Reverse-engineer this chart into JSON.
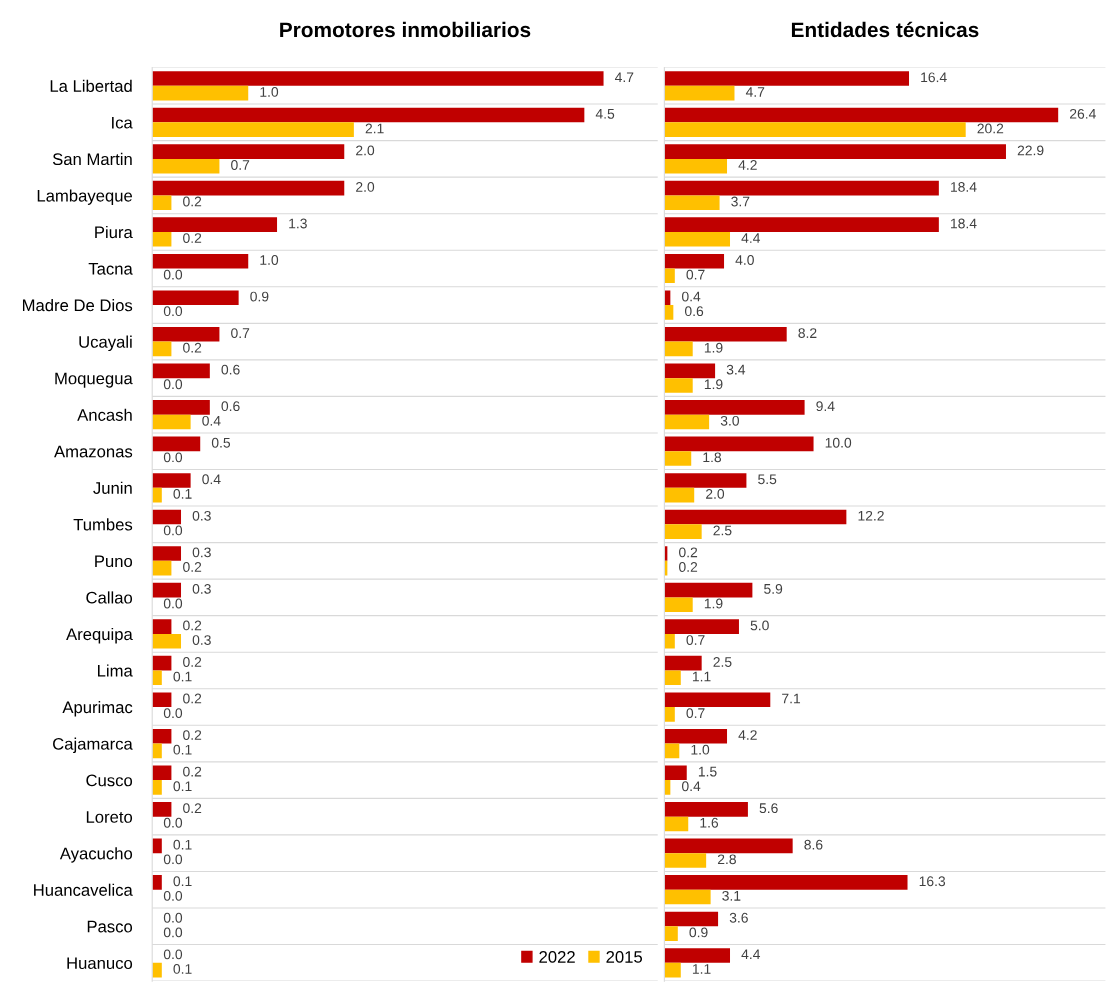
{
  "chart_data": [
    {
      "type": "bar",
      "orientation": "horizontal",
      "title": "Promotores inmobiliarios",
      "categories": [
        "La Libertad",
        "Ica",
        "San Martin",
        "Lambayeque",
        "Piura",
        "Tacna",
        "Madre De Dios",
        "Ucayali",
        "Moquegua",
        "Ancash",
        "Amazonas",
        "Junin",
        "Tumbes",
        "Puno",
        "Callao",
        "Arequipa",
        "Lima",
        "Apurimac",
        "Cajamarca",
        "Cusco",
        "Loreto",
        "Ayacucho",
        "Huancavelica",
        "Pasco",
        "Huanuco"
      ],
      "series": [
        {
          "name": "2022",
          "color": "#c00000",
          "values": [
            4.7,
            4.5,
            2,
            2,
            1.3,
            1,
            0.9,
            0.7,
            0.6,
            0.6,
            0.5,
            0.4,
            0.3,
            0.3,
            0.3,
            0.2,
            0.2,
            0.2,
            0.2,
            0.2,
            0.2,
            0.1,
            0.1,
            0,
            0
          ],
          "value_labels": [
            "4.7",
            "4.5",
            "2.0",
            "2.0",
            "1.3",
            "1.0",
            "0.9",
            "0.7",
            "0.6",
            "0.6",
            "0.5",
            "0.4",
            "0.3",
            "0.3",
            "0.3",
            "0.2",
            "0.2",
            "0.2",
            "0.2",
            "0.2",
            "0.2",
            "0.1",
            "0.1",
            "0.0",
            "0.0"
          ]
        },
        {
          "name": "2015",
          "color": "#ffc000",
          "values": [
            1,
            2.1,
            0.7,
            0.2,
            0.2,
            0,
            0,
            0.2,
            0,
            0.4,
            0,
            0.1,
            0,
            0.2,
            0,
            0.3,
            0.1,
            0,
            0.1,
            0.1,
            0,
            0,
            0,
            0,
            0.1
          ],
          "value_labels": [
            "1.0",
            "2.1",
            "0.7",
            "0.2",
            "0.2",
            "0.0",
            "0.0",
            "0.2",
            "0.0",
            "0.4",
            "0.0",
            "0.1",
            "0.0",
            "0.2",
            "0.0",
            "0.3",
            "0.1",
            "0.0",
            "0.1",
            "0.1",
            "0.0",
            "0.0",
            "0.0",
            "0.0",
            "0.1"
          ]
        }
      ],
      "grid": "y",
      "legend": "bottom right",
      "tick_labels": "y"
    },
    {
      "type": "bar",
      "orientation": "horizontal",
      "title": "Entidades técnicas",
      "categories": [
        null,
        null,
        null,
        null,
        null,
        null,
        null,
        null,
        null,
        null,
        null,
        null,
        null,
        null,
        null,
        null,
        null,
        null,
        null,
        null,
        null,
        null,
        null,
        null,
        null
      ],
      "series": [
        {
          "color": "#c00000",
          "values": [
            16.4,
            26.4,
            22.9,
            18.4,
            18.4,
            4,
            0.4,
            8.2,
            3.4,
            9.4,
            10,
            5.5,
            12.2,
            0.2,
            5.9,
            5,
            2.5,
            7.1,
            4.2,
            1.5,
            5.6,
            8.6,
            16.3,
            3.6,
            4.4
          ],
          "value_labels": [
            "16.4",
            "26.4",
            "22.9",
            "18.4",
            "18.4",
            "4.0",
            "0.4",
            "8.2",
            "3.4",
            "9.4",
            "10.0",
            "5.5",
            "12.2",
            "0.2",
            "5.9",
            "5.0",
            "2.5",
            "7.1",
            "4.2",
            "1.5",
            "5.6",
            "8.6",
            "16.3",
            "3.6",
            "4.4"
          ]
        },
        {
          "color": "#ffc000",
          "values": [
            4.7,
            20.2,
            4.2,
            3.7,
            4.4,
            0.7,
            0.6,
            1.9,
            1.9,
            3,
            1.8,
            2,
            2.5,
            0.2,
            1.9,
            0.7,
            1.1,
            0.7,
            1,
            0.4,
            1.6,
            2.8,
            3.1,
            0.9,
            1.1
          ],
          "value_labels": [
            "4.7",
            "20.2",
            "4.2",
            "3.7",
            "4.4",
            "0.7",
            "0.6",
            "1.9",
            "1.9",
            "3.0",
            "1.8",
            "2.0",
            "2.5",
            "0.2",
            "1.9",
            "0.7",
            "1.1",
            "0.7",
            "1.0",
            "0.4",
            "1.6",
            "2.8",
            "3.1",
            "0.9",
            "1.1"
          ]
        }
      ],
      "grid": "y",
      "tick_labels": false
    }
  ]
}
